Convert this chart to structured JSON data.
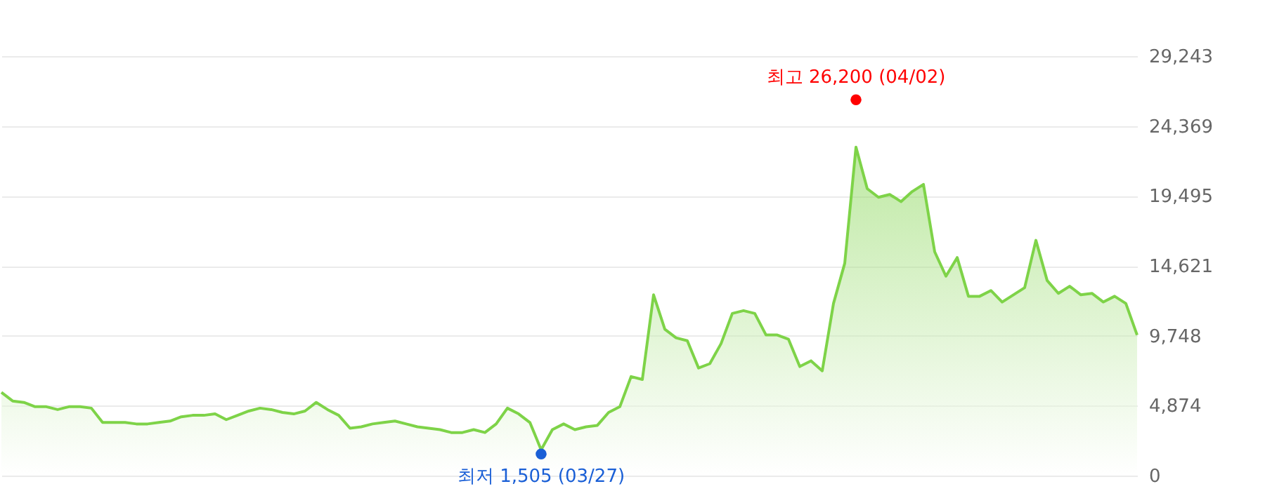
{
  "chart_data": {
    "type": "area",
    "categories": [
      null,
      null,
      null,
      null,
      null,
      null,
      null,
      null,
      null,
      null,
      null,
      null,
      null,
      null,
      null,
      null,
      null,
      null,
      null,
      null,
      null,
      null,
      null,
      null,
      null,
      null,
      null,
      null,
      null,
      null,
      null,
      null,
      null,
      null,
      null,
      null,
      null,
      null,
      null,
      null,
      null,
      null,
      null,
      null,
      null,
      null,
      null,
      null,
      null,
      null,
      null,
      null,
      null,
      null,
      null,
      null,
      null,
      null,
      null,
      null,
      null,
      null,
      null,
      null,
      null,
      null,
      null,
      null,
      null,
      null,
      null,
      null,
      null,
      null,
      null,
      null,
      null,
      null,
      null,
      null,
      null,
      null,
      null,
      null,
      null,
      null,
      null,
      null,
      null,
      null,
      null,
      null,
      null,
      null,
      null,
      null,
      null,
      null,
      null,
      null,
      null,
      null
    ],
    "series": [
      {
        "color": "#7ed348",
        "values": [
          5800,
          5200,
          5100,
          4800,
          4800,
          4600,
          4800,
          4800,
          4700,
          3700,
          3700,
          3700,
          3600,
          3600,
          3700,
          3800,
          4100,
          4200,
          4200,
          4300,
          3900,
          4200,
          4500,
          4700,
          4600,
          4400,
          4300,
          4500,
          5100,
          4600,
          4200,
          3300,
          3400,
          3600,
          3700,
          3800,
          3600,
          3400,
          3300,
          3200,
          3000,
          3000,
          3200,
          3000,
          3600,
          4700,
          4300,
          3700,
          1800,
          3200,
          3600,
          3200,
          3400,
          3500,
          4400,
          4800,
          6900,
          6700,
          12600,
          10200,
          9600,
          9400,
          7500,
          7800,
          9200,
          11300,
          11500,
          11300,
          9800,
          9800,
          9500,
          7600,
          8000,
          7300,
          12000,
          14800,
          22900,
          20000,
          19400,
          19600,
          19100,
          19800,
          20300,
          15600,
          13900,
          15200,
          12500,
          12500,
          12900,
          12100,
          12600,
          13100,
          16400,
          13600,
          12700,
          13200,
          12600,
          12700,
          12100,
          12500,
          12000,
          9800
        ]
      },
      {
        "type": "scatter",
        "color": "#ff0000",
        "values": [
          null,
          null,
          null,
          null,
          null,
          null,
          null,
          null,
          null,
          null,
          null,
          null,
          null,
          null,
          null,
          null,
          null,
          null,
          null,
          null,
          null,
          null,
          null,
          null,
          null,
          null,
          null,
          null,
          null,
          null,
          null,
          null,
          null,
          null,
          null,
          null,
          null,
          null,
          null,
          null,
          null,
          null,
          null,
          null,
          null,
          null,
          null,
          null,
          null,
          null,
          null,
          null,
          null,
          null,
          null,
          null,
          null,
          null,
          null,
          null,
          null,
          null,
          null,
          null,
          null,
          null,
          null,
          null,
          null,
          null,
          null,
          null,
          null,
          null,
          null,
          null,
          26200,
          null,
          null,
          null,
          null,
          null,
          null,
          null,
          null,
          null,
          null,
          null,
          null,
          null,
          null,
          null,
          null,
          null,
          null,
          null,
          null,
          null,
          null,
          null,
          null,
          null
        ]
      },
      {
        "type": "scatter",
        "color": "#1a5fd6",
        "values": [
          null,
          null,
          null,
          null,
          null,
          null,
          null,
          null,
          null,
          null,
          null,
          null,
          null,
          null,
          null,
          null,
          null,
          null,
          null,
          null,
          null,
          null,
          null,
          null,
          null,
          null,
          null,
          null,
          null,
          null,
          null,
          null,
          null,
          null,
          null,
          null,
          null,
          null,
          null,
          null,
          null,
          null,
          null,
          null,
          null,
          null,
          null,
          null,
          1505,
          null,
          null,
          null,
          null,
          null,
          null,
          null,
          null,
          null,
          null,
          null,
          null,
          null,
          null,
          null,
          null,
          null,
          null,
          null,
          null,
          null,
          null,
          null,
          null,
          null,
          null,
          null,
          null,
          null,
          null,
          null,
          null,
          null,
          null,
          null,
          null,
          null,
          null,
          null,
          null,
          null,
          null,
          null,
          null,
          null,
          null,
          null,
          null,
          null,
          null,
          null,
          null,
          null
        ]
      }
    ],
    "annotations": [
      "최고 26,200 (04/02)",
      "최저 1,505 (03/27)"
    ],
    "ylim": [
      0,
      29243
    ],
    "yticks": [
      0,
      {
        "value": 4874,
        "label": "4,874"
      },
      {
        "value": 9748,
        "label": "9,748"
      },
      {
        "value": 14621,
        "label": "14,621"
      },
      {
        "value": 19495,
        "label": "19,495"
      },
      {
        "value": 24369,
        "label": "24,369"
      },
      {
        "value": 29243,
        "label": "29,243"
      }
    ],
    "grid": "y"
  }
}
